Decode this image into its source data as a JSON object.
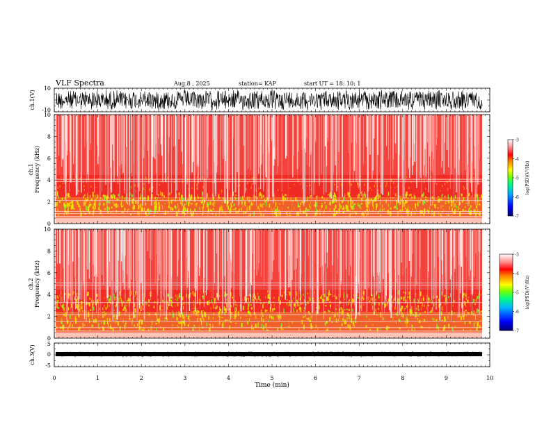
{
  "header": {
    "title": "VLF Spectra",
    "date": "Aug.8 , 2025",
    "station": "station= KAP",
    "start": "start UT = 18: 10: 1"
  },
  "chart_data": [
    {
      "type": "line",
      "name": "ch1-waveform",
      "ylabel": "ch.1(V)",
      "ylim": [
        -10,
        10
      ],
      "yticks": [
        "10",
        "-10"
      ],
      "xlim": [
        0,
        10
      ]
    },
    {
      "type": "heatmap",
      "name": "ch1-spectrogram",
      "ylabel": "ch.1\nFrequency (kHz)",
      "ylim": [
        0,
        10
      ],
      "yticks": [
        "0",
        "2",
        "4",
        "6",
        "8",
        "10"
      ],
      "xlim": [
        0,
        10
      ],
      "colorbar": {
        "label": "log(PSD)(V²/Hz)",
        "range": [
          -7,
          -3
        ],
        "ticks": [
          "-3",
          "-4",
          "-5",
          "-6",
          "-7"
        ]
      }
    },
    {
      "type": "heatmap",
      "name": "ch2-spectrogram",
      "ylabel": "ch.2\nFrequency (kHz)",
      "ylim": [
        0,
        10
      ],
      "yticks": [
        "0",
        "2",
        "4",
        "6",
        "8",
        "10"
      ],
      "xlim": [
        0,
        10
      ],
      "colorbar": {
        "label": "log(PSD)(V²/Hz)",
        "range": [
          -7,
          -3
        ],
        "ticks": [
          "-3",
          "-4",
          "-5",
          "-6",
          "-7"
        ]
      }
    },
    {
      "type": "line",
      "name": "ch3-waveform",
      "ylabel": "ch.3(V)",
      "ylim": [
        -5,
        5
      ],
      "yticks": [
        "5",
        "0",
        "-5"
      ],
      "xlim": [
        0,
        10
      ],
      "xlabel": "Time (min)",
      "xticks": [
        "0",
        "1",
        "2",
        "3",
        "4",
        "5",
        "6",
        "7",
        "8",
        "9",
        "10"
      ]
    }
  ],
  "labels": {
    "ch1_volt": "ch.1(V)",
    "ch1_freq": "ch.1",
    "ch2_freq": "ch.2",
    "freq_label": "Frequency (kHz)",
    "ch3_volt": "ch.3(V)",
    "xlabel": "Time (min)",
    "cbar": "log(PSD)(V²/Hz)"
  },
  "ticks": {
    "w1": [
      "10",
      "-10"
    ],
    "freq": [
      "0",
      "2",
      "4",
      "6",
      "8",
      "10"
    ],
    "w3": [
      "5",
      "0",
      "-5"
    ],
    "time": [
      "0",
      "1",
      "2",
      "3",
      "4",
      "5",
      "6",
      "7",
      "8",
      "9",
      "10"
    ],
    "cbar": [
      "-3",
      "-4",
      "-5",
      "-6",
      "-7"
    ]
  }
}
